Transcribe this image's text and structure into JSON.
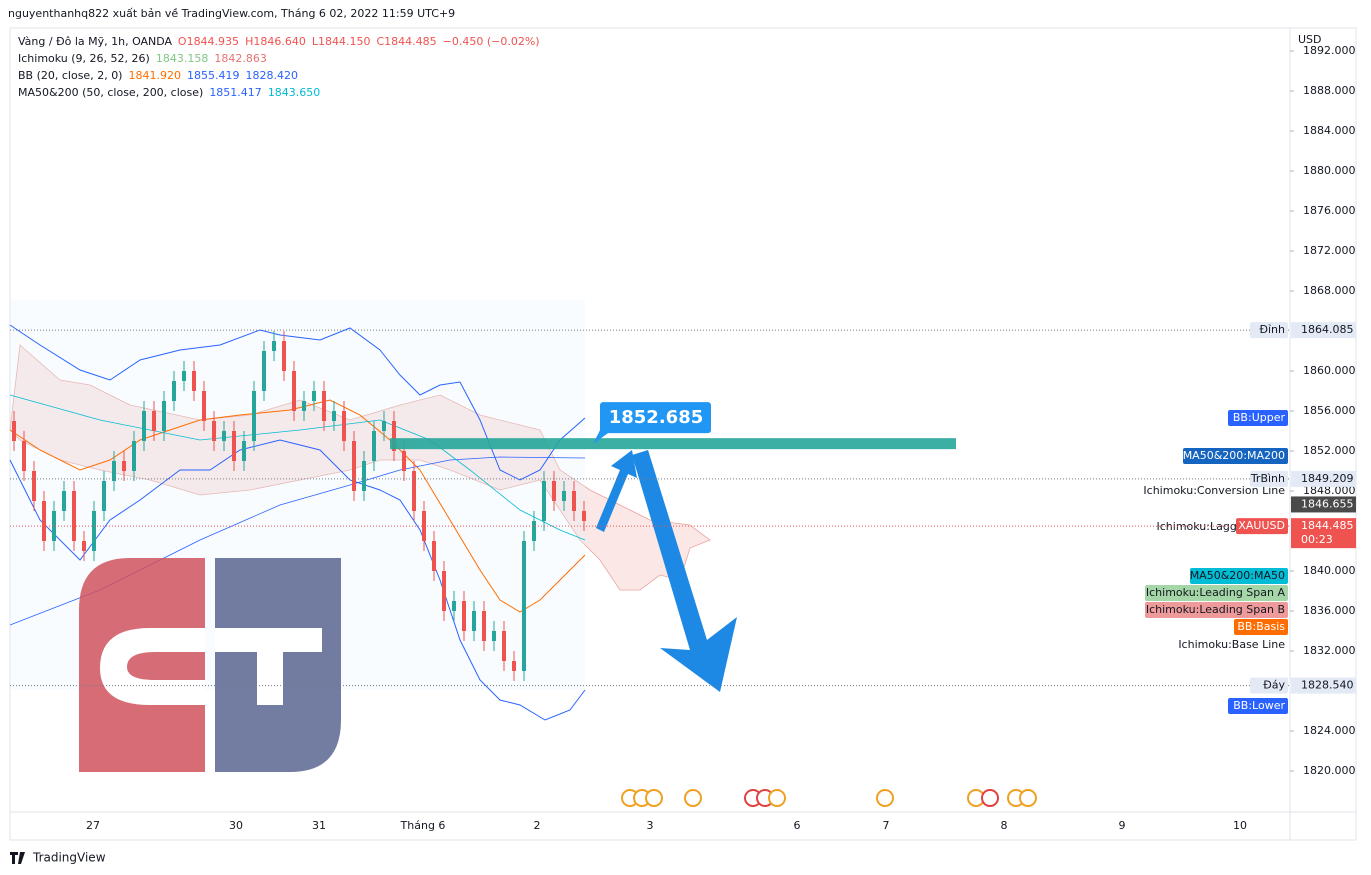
{
  "header": "nguyenthanhq822 xuất bản về TradingView.com, Tháng 6 02, 2022 11:59 UTC+9",
  "legend": [
    [
      "Vàng / Đô la Mỹ, 1h, OANDA",
      "O1844.935",
      "H1846.640",
      "L1844.150",
      "C1844.485",
      "−0.450 (−0.02%)"
    ],
    [
      "Ichimoku (9, 26, 52, 26)",
      "1843.158",
      "1842.863"
    ],
    [
      "BB (20, close, 2, 0)",
      "1841.920",
      "1855.419",
      "1828.420"
    ],
    [
      "MA50&200 (50, close, 200, close)",
      "1851.417",
      "1843.650"
    ]
  ],
  "price_axis": {
    "unit": "USD",
    "ylim": [
      1815.9,
      1894.1
    ],
    "yticks": [
      {
        "value": 1892,
        "label": "1892.000"
      },
      {
        "value": 1888,
        "label": "1888.000"
      },
      {
        "value": 1884,
        "label": "1884.000"
      },
      {
        "value": 1880,
        "label": "1880.000"
      },
      {
        "value": 1876,
        "label": "1876.000"
      },
      {
        "value": 1872,
        "label": "1872.000"
      },
      {
        "value": 1868,
        "label": "1868.000"
      },
      {
        "value": 1860,
        "label": "1860.000"
      },
      {
        "value": 1856,
        "label": "1856.000"
      },
      {
        "value": 1852,
        "label": "1852.000"
      },
      {
        "value": 1848,
        "label": "1848.000"
      },
      {
        "value": 1840,
        "label": "1840.000"
      },
      {
        "value": 1836,
        "label": "1836.000"
      },
      {
        "value": 1832,
        "label": "1832.000"
      },
      {
        "value": 1824,
        "label": "1824.000"
      },
      {
        "value": 1820,
        "label": "1820.000"
      }
    ]
  },
  "levels": [
    {
      "name": "Đỉnh",
      "price": 1864.085
    },
    {
      "name": "TrBình",
      "price": 1849.209
    },
    {
      "price": 1846.655
    },
    {
      "name": "XAUUSD",
      "price": 1844.485,
      "timer": "00:23"
    },
    {
      "name": "Đáy",
      "price": {
        "value": 1828.54,
        "label": "1828.540"
      }
    }
  ],
  "indicator_labels": [
    "BB:Upper",
    "MA50&200:MA200",
    "Ichimoku:Conversion Line",
    "Ichimoku:Lagging Span",
    "MA50&200:MA50",
    "Ichimoku:Leading Span A",
    "Ichimoku:Leading Span B",
    "BB:Basis",
    "Ichimoku:Base Line",
    "BB:Lower"
  ],
  "callout": 1852.685,
  "time_axis": [
    "27",
    "30",
    "31",
    "Tháng 6",
    "2",
    "3",
    "6",
    "7",
    "8",
    "9",
    "10"
  ],
  "candles": [
    [
      1855,
      1856,
      1852,
      1853
    ],
    [
      1853,
      1854,
      1849,
      1850
    ],
    [
      1850,
      1851,
      1846,
      1847
    ],
    [
      1847,
      1848,
      1842,
      1843
    ],
    [
      1843,
      1847,
      1842,
      1846
    ],
    [
      1846,
      1849,
      1845,
      1848
    ],
    [
      1848,
      1849,
      1842,
      1843
    ],
    [
      1843,
      1844,
      1841,
      1842
    ],
    [
      1842,
      1847,
      1841,
      1846
    ],
    [
      1846,
      1850,
      1845,
      1849
    ],
    [
      1849,
      1852,
      1848,
      1851
    ],
    [
      1851,
      1852,
      1849,
      1850
    ],
    [
      1850,
      1854,
      1849,
      1853
    ],
    [
      1853,
      1857,
      1852,
      1856
    ],
    [
      1856,
      1857,
      1853,
      1854
    ],
    [
      1854,
      1858,
      1853,
      1857
    ],
    [
      1857,
      1860,
      1856,
      1859
    ],
    [
      1859,
      1861,
      1858,
      1860
    ],
    [
      1860,
      1861,
      1857,
      1858
    ],
    [
      1858,
      1859,
      1854,
      1855
    ],
    [
      1855,
      1856,
      1852,
      1853
    ],
    [
      1853,
      1855,
      1852,
      1854
    ],
    [
      1854,
      1855,
      1850,
      1851
    ],
    [
      1851,
      1854,
      1850,
      1853
    ],
    [
      1853,
      1859,
      1852,
      1858
    ],
    [
      1858,
      1863,
      1857,
      1862
    ],
    [
      1862,
      1864,
      1861,
      1863
    ],
    [
      1863,
      1864,
      1859,
      1860
    ],
    [
      1860,
      1861,
      1855,
      1856
    ],
    [
      1856,
      1858,
      1855,
      1857
    ],
    [
      1857,
      1859,
      1856,
      1858
    ],
    [
      1858,
      1859,
      1854,
      1855
    ],
    [
      1855,
      1857,
      1854,
      1856
    ],
    [
      1856,
      1857,
      1852,
      1853
    ],
    [
      1853,
      1854,
      1847,
      1848
    ],
    [
      1848,
      1852,
      1847,
      1851
    ],
    [
      1851,
      1855,
      1850,
      1854
    ],
    [
      1854,
      1856,
      1853,
      1855
    ],
    [
      1855,
      1856,
      1851,
      1852
    ],
    [
      1852,
      1853,
      1849,
      1850
    ],
    [
      1850,
      1851,
      1845,
      1846
    ],
    [
      1846,
      1847,
      1842,
      1843
    ],
    [
      1843,
      1844,
      1839,
      1840
    ],
    [
      1840,
      1841,
      1835,
      1836
    ],
    [
      1836,
      1838,
      1835,
      1837
    ],
    [
      1837,
      1838,
      1833,
      1834
    ],
    [
      1834,
      1837,
      1833,
      1836
    ],
    [
      1836,
      1837,
      1832,
      1833
    ],
    [
      1833,
      1835,
      1832,
      1834
    ],
    [
      1834,
      1835,
      1830,
      1831
    ],
    [
      1831,
      1832,
      1829,
      1830
    ],
    [
      1830,
      1844,
      1829,
      1843
    ],
    [
      1843,
      1846,
      1842,
      1845
    ],
    [
      1845,
      1850,
      1844,
      1849
    ],
    [
      1849,
      1850,
      1846,
      1847
    ],
    [
      1847,
      1849,
      1846,
      1848
    ],
    [
      1848,
      1849,
      1845,
      1846
    ],
    [
      1846,
      1847,
      1844,
      1845
    ]
  ],
  "footer": "TradingView"
}
